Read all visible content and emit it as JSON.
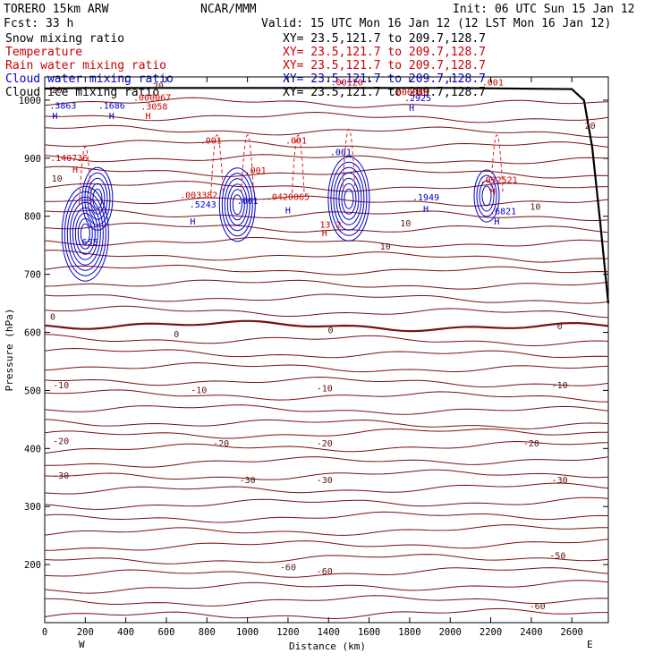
{
  "header": {
    "model": "TORERO  15km ARW",
    "center": "NCAR/MMM",
    "init": "Init: 06 UTC Sun 15 Jan 12",
    "fcst": "Fcst:   33 h",
    "valid": "Valid: 15 UTC Mon 16 Jan 12 (12 LST Mon 16 Jan 12)",
    "fields": [
      {
        "name": "Snow mixing ratio",
        "xy": "XY=  23.5,121.7 to 209.7,128.7",
        "color": "#000000"
      },
      {
        "name": "Temperature",
        "xy": "XY=  23.5,121.7 to 209.7,128.7",
        "color": "#cc0000"
      },
      {
        "name": "Rain water mixing ratio",
        "xy": "XY=  23.5,121.7 to 209.7,128.7",
        "color": "#cc0000"
      },
      {
        "name": "Cloud water mixing ratio",
        "xy": "XY=  23.5,121.7 to 209.7,128.7",
        "color": "#0000cc"
      },
      {
        "name": "Cloud ice mixing ratio",
        "xy": "XY=  23.5,121.7 to 209.7,128.7",
        "color": "#000000"
      }
    ]
  },
  "chart_data": {
    "type": "contour",
    "xlabel": "Distance (km)",
    "ylabel": "Pressure (hPa)",
    "xlim": [
      0,
      2780
    ],
    "ylim": [
      1040,
      100
    ],
    "x_ticks": [
      0,
      200,
      400,
      600,
      800,
      1000,
      1200,
      1400,
      1600,
      1800,
      2000,
      2200,
      2400,
      2600
    ],
    "y_ticks": [
      200,
      300,
      400,
      500,
      600,
      700,
      800,
      900,
      1000
    ],
    "x_end_labels": {
      "left": "W",
      "right": "E"
    },
    "colors": {
      "temperature": "#7a1010",
      "rain": "#e02020",
      "cloud_water": "#0000cc",
      "terrain": "#000000"
    },
    "temperature_labels": [
      {
        "x": 2430,
        "p": 128,
        "text": "-60"
      },
      {
        "x": 1200,
        "p": 195,
        "text": "-60"
      },
      {
        "x": 1380,
        "p": 188,
        "text": "-60"
      },
      {
        "x": 2530,
        "p": 215,
        "text": "-50"
      },
      {
        "x": 80,
        "p": 353,
        "text": "-30"
      },
      {
        "x": 1000,
        "p": 345,
        "text": "-30"
      },
      {
        "x": 1380,
        "p": 345,
        "text": "-30"
      },
      {
        "x": 2540,
        "p": 345,
        "text": "-30"
      },
      {
        "x": 80,
        "p": 412,
        "text": "-20"
      },
      {
        "x": 870,
        "p": 408,
        "text": "-20"
      },
      {
        "x": 1380,
        "p": 408,
        "text": "-20"
      },
      {
        "x": 2400,
        "p": 408,
        "text": "-20"
      },
      {
        "x": 80,
        "p": 508,
        "text": "-10"
      },
      {
        "x": 760,
        "p": 500,
        "text": "-10"
      },
      {
        "x": 1380,
        "p": 503,
        "text": "-10"
      },
      {
        "x": 2540,
        "p": 508,
        "text": "-10"
      },
      {
        "x": 40,
        "p": 626,
        "text": "0"
      },
      {
        "x": 650,
        "p": 596,
        "text": "0"
      },
      {
        "x": 1410,
        "p": 603,
        "text": "0"
      },
      {
        "x": 2540,
        "p": 610,
        "text": "0"
      },
      {
        "x": 1680,
        "p": 747,
        "text": "10"
      },
      {
        "x": 1780,
        "p": 787,
        "text": "10"
      },
      {
        "x": 2420,
        "p": 816,
        "text": "10"
      },
      {
        "x": 60,
        "p": 864,
        "text": "10"
      },
      {
        "x": 2690,
        "p": 955,
        "text": "20"
      },
      {
        "x": 60,
        "p": 1017,
        "text": "20"
      },
      {
        "x": 560,
        "p": 1024,
        "text": "20"
      }
    ],
    "maxima_labels": [
      {
        "x": 210,
        "p": 755,
        "text": ".655",
        "color": "#0000cc"
      },
      {
        "x": 150,
        "p": 880,
        "text": "H",
        "color": "#cc0000"
      },
      {
        "x": 120,
        "p": 900,
        "text": ".140736",
        "color": "#cc0000"
      },
      {
        "x": 50,
        "p": 972,
        "text": "H",
        "color": "#0000cc"
      },
      {
        "x": 90,
        "p": 990,
        "text": ".3863",
        "color": "#0000cc"
      },
      {
        "x": 330,
        "p": 972,
        "text": "H",
        "color": "#0000cc"
      },
      {
        "x": 330,
        "p": 990,
        "text": ".1686",
        "color": "#0000cc"
      },
      {
        "x": 510,
        "p": 972,
        "text": "H",
        "color": "#cc0000"
      },
      {
        "x": 540,
        "p": 988,
        "text": ".3058",
        "color": "#cc0000"
      },
      {
        "x": 530,
        "p": 1004,
        "text": ".000067",
        "color": "#cc0000"
      },
      {
        "x": 730,
        "p": 790,
        "text": "H",
        "color": "#0000cc"
      },
      {
        "x": 780,
        "p": 820,
        "text": ".5243",
        "color": "#0000cc"
      },
      {
        "x": 760,
        "p": 836,
        "text": ".003382",
        "color": "#cc0000"
      },
      {
        "x": 1000,
        "p": 826,
        "text": ".001",
        "color": "#0000cc"
      },
      {
        "x": 1040,
        "p": 878,
        "text": ".001",
        "color": "#cc0000"
      },
      {
        "x": 1200,
        "p": 810,
        "text": "H",
        "color": "#0000cc"
      },
      {
        "x": 1200,
        "p": 833,
        "text": ".0420065",
        "color": "#cc0000"
      },
      {
        "x": 820,
        "p": 930,
        "text": ".001",
        "color": "#cc0000"
      },
      {
        "x": 1240,
        "p": 930,
        "text": ".001",
        "color": "#cc0000"
      },
      {
        "x": 1380,
        "p": 770,
        "text": "H",
        "color": "#cc0000"
      },
      {
        "x": 1410,
        "p": 785,
        "text": "13.2",
        "color": "#cc0000"
      },
      {
        "x": 1460,
        "p": 910,
        "text": ".001",
        "color": "#0000cc"
      },
      {
        "x": 1490,
        "p": 1030,
        "text": ".00120",
        "color": "#cc0000"
      },
      {
        "x": 1880,
        "p": 812,
        "text": "H",
        "color": "#0000cc"
      },
      {
        "x": 1880,
        "p": 832,
        "text": ".1949",
        "color": "#0000cc"
      },
      {
        "x": 2230,
        "p": 790,
        "text": "H",
        "color": "#0000cc"
      },
      {
        "x": 2260,
        "p": 808,
        "text": ".6821",
        "color": "#0000cc"
      },
      {
        "x": 2210,
        "p": 842,
        "text": "H",
        "color": "#cc0000"
      },
      {
        "x": 2240,
        "p": 862,
        "text": ".032521",
        "color": "#cc0000"
      },
      {
        "x": 1810,
        "p": 986,
        "text": "H",
        "color": "#0000cc"
      },
      {
        "x": 1840,
        "p": 1003,
        "text": ".2925",
        "color": "#0000cc"
      },
      {
        "x": 1800,
        "p": 1013,
        "text": ".000080",
        "color": "#cc0000"
      },
      {
        "x": 2210,
        "p": 1030,
        "text": ".001",
        "color": "#cc0000"
      }
    ],
    "terrain": {
      "x": [
        0,
        200,
        1000,
        2000,
        2600,
        2660,
        2700,
        2740,
        2780
      ],
      "p": [
        1020,
        1021,
        1021,
        1021,
        1019,
        1000,
        920,
        790,
        650
      ]
    }
  }
}
